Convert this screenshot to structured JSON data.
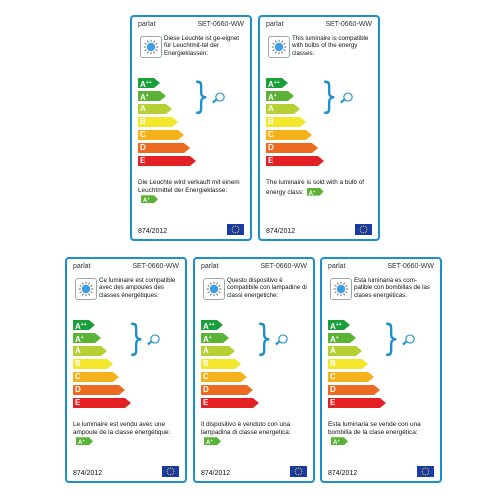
{
  "common": {
    "brand": "parlat",
    "code": "SET-0660-WW",
    "regulation": "874/2012",
    "classes": [
      "A++",
      "A+",
      "A",
      "B",
      "C",
      "D",
      "E"
    ],
    "class_colors": [
      "#1a9e3a",
      "#5bb336",
      "#b6d034",
      "#f2e72a",
      "#f6b21d",
      "#ec6b20",
      "#e32023"
    ],
    "sold_class": "A+"
  },
  "labels": [
    {
      "lang": "de",
      "compat_text": "Diese Leuchte ist ge-eignet für Leuchtmit-tel der Energieklassen:",
      "sold_text": "Die Leuchte wird verkauft mit einem Leuchtmittel der Energieklasse:"
    },
    {
      "lang": "en",
      "compat_text": "This luminaire is compatible with bulbs of the energy classes:",
      "sold_text": "The luminaire is sold with a bulb of energy class:"
    },
    {
      "lang": "fr",
      "compat_text": "Ce luminaire est compatible avec des ampoules des classes énergétiques:",
      "sold_text": "Le luminaire est vendu avec une ampoule de la classe énergétique:"
    },
    {
      "lang": "it",
      "compat_text": "Questo dispositivo è compatibile con lampadine di classi energetiche:",
      "sold_text": "Il dispositivo è venduto con una lampadina di classe energetica:"
    },
    {
      "lang": "es",
      "compat_text": "Esta luminaria es com-patible con bombillas de las clases energéticas:",
      "sold_text": "Esta luminaria se vende con una bombilla de la clase energética:"
    }
  ]
}
